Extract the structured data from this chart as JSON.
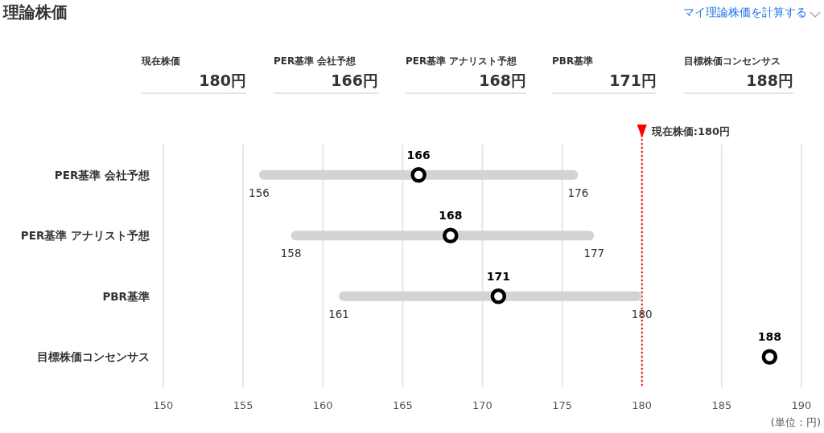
{
  "chart_data": {
    "type": "bar",
    "orientation": "horizontal",
    "title": "理論株価",
    "categories": [
      "PER基準 会社予想",
      "PER基準 アナリスト予想",
      "PBR基準",
      "目標株価コンセンサス"
    ],
    "series": [
      {
        "color": "#d3d3d3",
        "base": [
          156,
          158,
          161,
          null
        ],
        "values": [
          20,
          19,
          19,
          null
        ]
      },
      {
        "type": "scatter",
        "color": "#000000",
        "marker": "circle",
        "data_labels": true,
        "values": [
          166,
          168,
          171,
          188
        ]
      }
    ],
    "xlim": [
      150,
      190
    ],
    "xticks": [
      150,
      155,
      160,
      165,
      170,
      175,
      180,
      185,
      190
    ],
    "grid": "x",
    "ref_lines": [
      {
        "axis": "x",
        "value": 180,
        "label": "現在株価:180円",
        "color": "#ff0000",
        "line_style": "dotted"
      }
    ],
    "annotations": [
      "マイ理論株価を計算する",
      "現在株価\n180円",
      "PER基準 会社予想\n166円",
      "PER基準 アナリスト予想\n168円",
      "PBR基準\n171円",
      "目標株価コンセンサス\n188円",
      {
        "text": "156",
        "x": 156,
        "y": "PER基準 会社予想"
      },
      {
        "text": "176",
        "x": 176,
        "y": "PER基準 会社予想"
      },
      {
        "text": "158",
        "x": 158,
        "y": "PER基準 アナリスト予想"
      },
      {
        "text": "177",
        "x": 177,
        "y": "PER基準 アナリスト予想"
      },
      {
        "text": "161",
        "x": 161,
        "y": "PBR基準"
      },
      {
        "text": "180",
        "x": 180,
        "y": "PBR基準"
      },
      "(単位：円)"
    ]
  }
}
